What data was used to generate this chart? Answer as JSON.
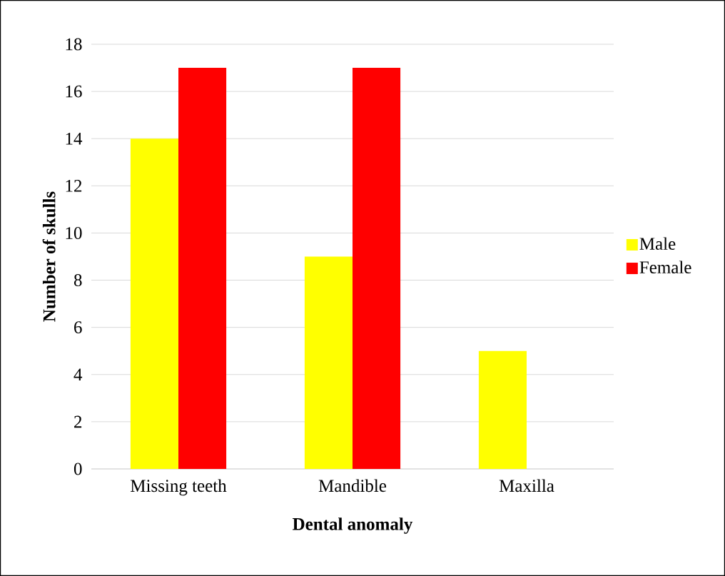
{
  "chart_data": {
    "type": "bar",
    "xlabel": "Dental anomaly",
    "ylabel": "Number of skulls",
    "categories": [
      "Missing teeth",
      "Mandible",
      "Maxilla"
    ],
    "series": [
      {
        "name": "Male",
        "color": "#ffff00",
        "values": [
          14,
          9,
          5
        ]
      },
      {
        "name": "Female",
        "color": "#ff0000",
        "values": [
          17,
          17,
          0
        ]
      }
    ],
    "ylim": [
      0,
      18
    ],
    "yticks": [
      0,
      2,
      4,
      6,
      8,
      10,
      12,
      14,
      16,
      18
    ],
    "grid": "y",
    "legend": "right"
  }
}
